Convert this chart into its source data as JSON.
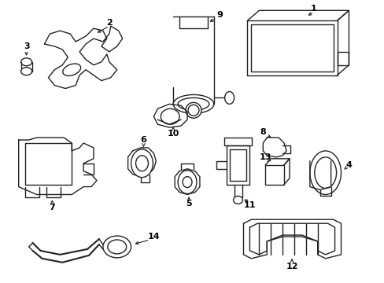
{
  "background_color": "#ffffff",
  "line_color": "#222222",
  "line_width": 1.0,
  "figsize": [
    4.89,
    3.6
  ],
  "dpi": 100
}
